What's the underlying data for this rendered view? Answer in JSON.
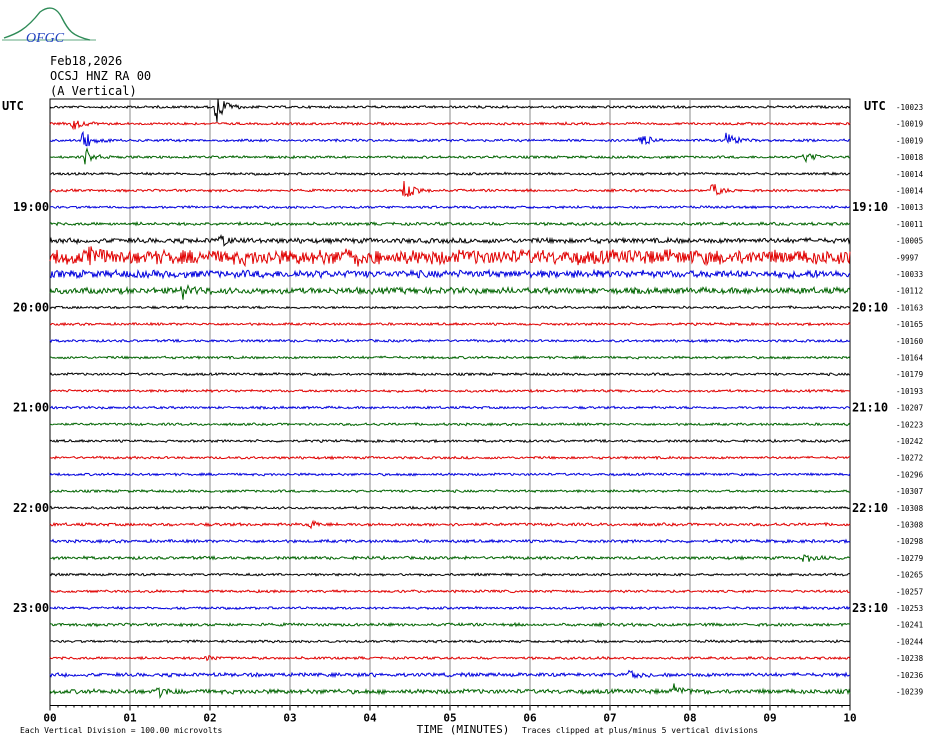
{
  "logo": {
    "text": "OFGC"
  },
  "header": {
    "date": "Feb18,2026",
    "station": "OCSJ HNZ RA 00",
    "component": "(A Vertical)",
    "utc_left": "UTC",
    "utc_right": "UTC"
  },
  "chart_data": {
    "type": "line",
    "title": "",
    "xlabel": "TIME (MINUTES)",
    "ylabel": "",
    "xlim": [
      0,
      10
    ],
    "x_ticks": [
      "00",
      "01",
      "02",
      "03",
      "04",
      "05",
      "06",
      "07",
      "08",
      "09",
      "10"
    ],
    "left_time_labels": [
      {
        "row": 6,
        "label": "19:00"
      },
      {
        "row": 12,
        "label": "20:00"
      },
      {
        "row": 18,
        "label": "21:00"
      },
      {
        "row": 24,
        "label": "22:00"
      },
      {
        "row": 30,
        "label": "23:00"
      }
    ],
    "right_time_labels": [
      {
        "row": 6,
        "label": "19:10"
      },
      {
        "row": 12,
        "label": "20:10"
      },
      {
        "row": 18,
        "label": "21:10"
      },
      {
        "row": 24,
        "label": "22:10"
      },
      {
        "row": 30,
        "label": "23:10"
      }
    ],
    "right_top_label": "-10023",
    "trace_offsets": [
      "-10023",
      "-10019",
      "-10019",
      "-10018",
      "-10014",
      "-10014",
      "-10013",
      "-10011",
      "-10005",
      "-9997",
      "-10033",
      "-10112",
      "-10163",
      "-10165",
      "-10160",
      "-10164",
      "-10179",
      "-10193",
      "-10207",
      "-10223",
      "-10242",
      "-10272",
      "-10296",
      "-10307",
      "-10308",
      "-10308",
      "-10298",
      "-10279",
      "-10265",
      "-10257",
      "-10253",
      "-10241",
      "-10244",
      "-10238",
      "-10236",
      "-10239"
    ],
    "trace_colors": [
      "#000000",
      "#e00000",
      "#0000dd",
      "#006400"
    ],
    "events": [
      {
        "row": 0,
        "minute": 2.08,
        "amp": 16
      },
      {
        "row": 1,
        "minute": 0.28,
        "amp": 7
      },
      {
        "row": 2,
        "minute": 0.42,
        "amp": 10
      },
      {
        "row": 2,
        "minute": 7.38,
        "amp": 9
      },
      {
        "row": 2,
        "minute": 8.45,
        "amp": 9
      },
      {
        "row": 3,
        "minute": 0.45,
        "amp": 10
      },
      {
        "row": 3,
        "minute": 9.42,
        "amp": 8
      },
      {
        "row": 5,
        "minute": 4.42,
        "amp": 14
      },
      {
        "row": 5,
        "minute": 8.28,
        "amp": 9
      },
      {
        "row": 8,
        "minute": 2.12,
        "amp": 6
      },
      {
        "row": 9,
        "minute": 0.5,
        "amp": 10
      },
      {
        "row": 9,
        "minute": 3.7,
        "amp": 6
      },
      {
        "row": 11,
        "minute": 1.65,
        "amp": 6
      },
      {
        "row": 25,
        "minute": 3.25,
        "amp": 3
      },
      {
        "row": 27,
        "minute": 9.42,
        "amp": 5
      },
      {
        "row": 33,
        "minute": 1.95,
        "amp": 3
      },
      {
        "row": 34,
        "minute": 7.25,
        "amp": 4
      },
      {
        "row": 35,
        "minute": 1.35,
        "amp": 5
      },
      {
        "row": 35,
        "minute": 7.8,
        "amp": 6
      }
    ],
    "noise_level": [
      1,
      1,
      1,
      1,
      1,
      1,
      1,
      1.2,
      2,
      6,
      3,
      2.5,
      1,
      1,
      1,
      1,
      1,
      1,
      1,
      1,
      1,
      1,
      1,
      1,
      1,
      1.2,
      1.2,
      1.2,
      1,
      1,
      1,
      1.2,
      1,
      1,
      1.5,
      1.8
    ],
    "footer_left": "Each Vertical Division =  100.00 microvolts",
    "footer_right": "Traces clipped at plus/minus 5 vertical divisions"
  }
}
